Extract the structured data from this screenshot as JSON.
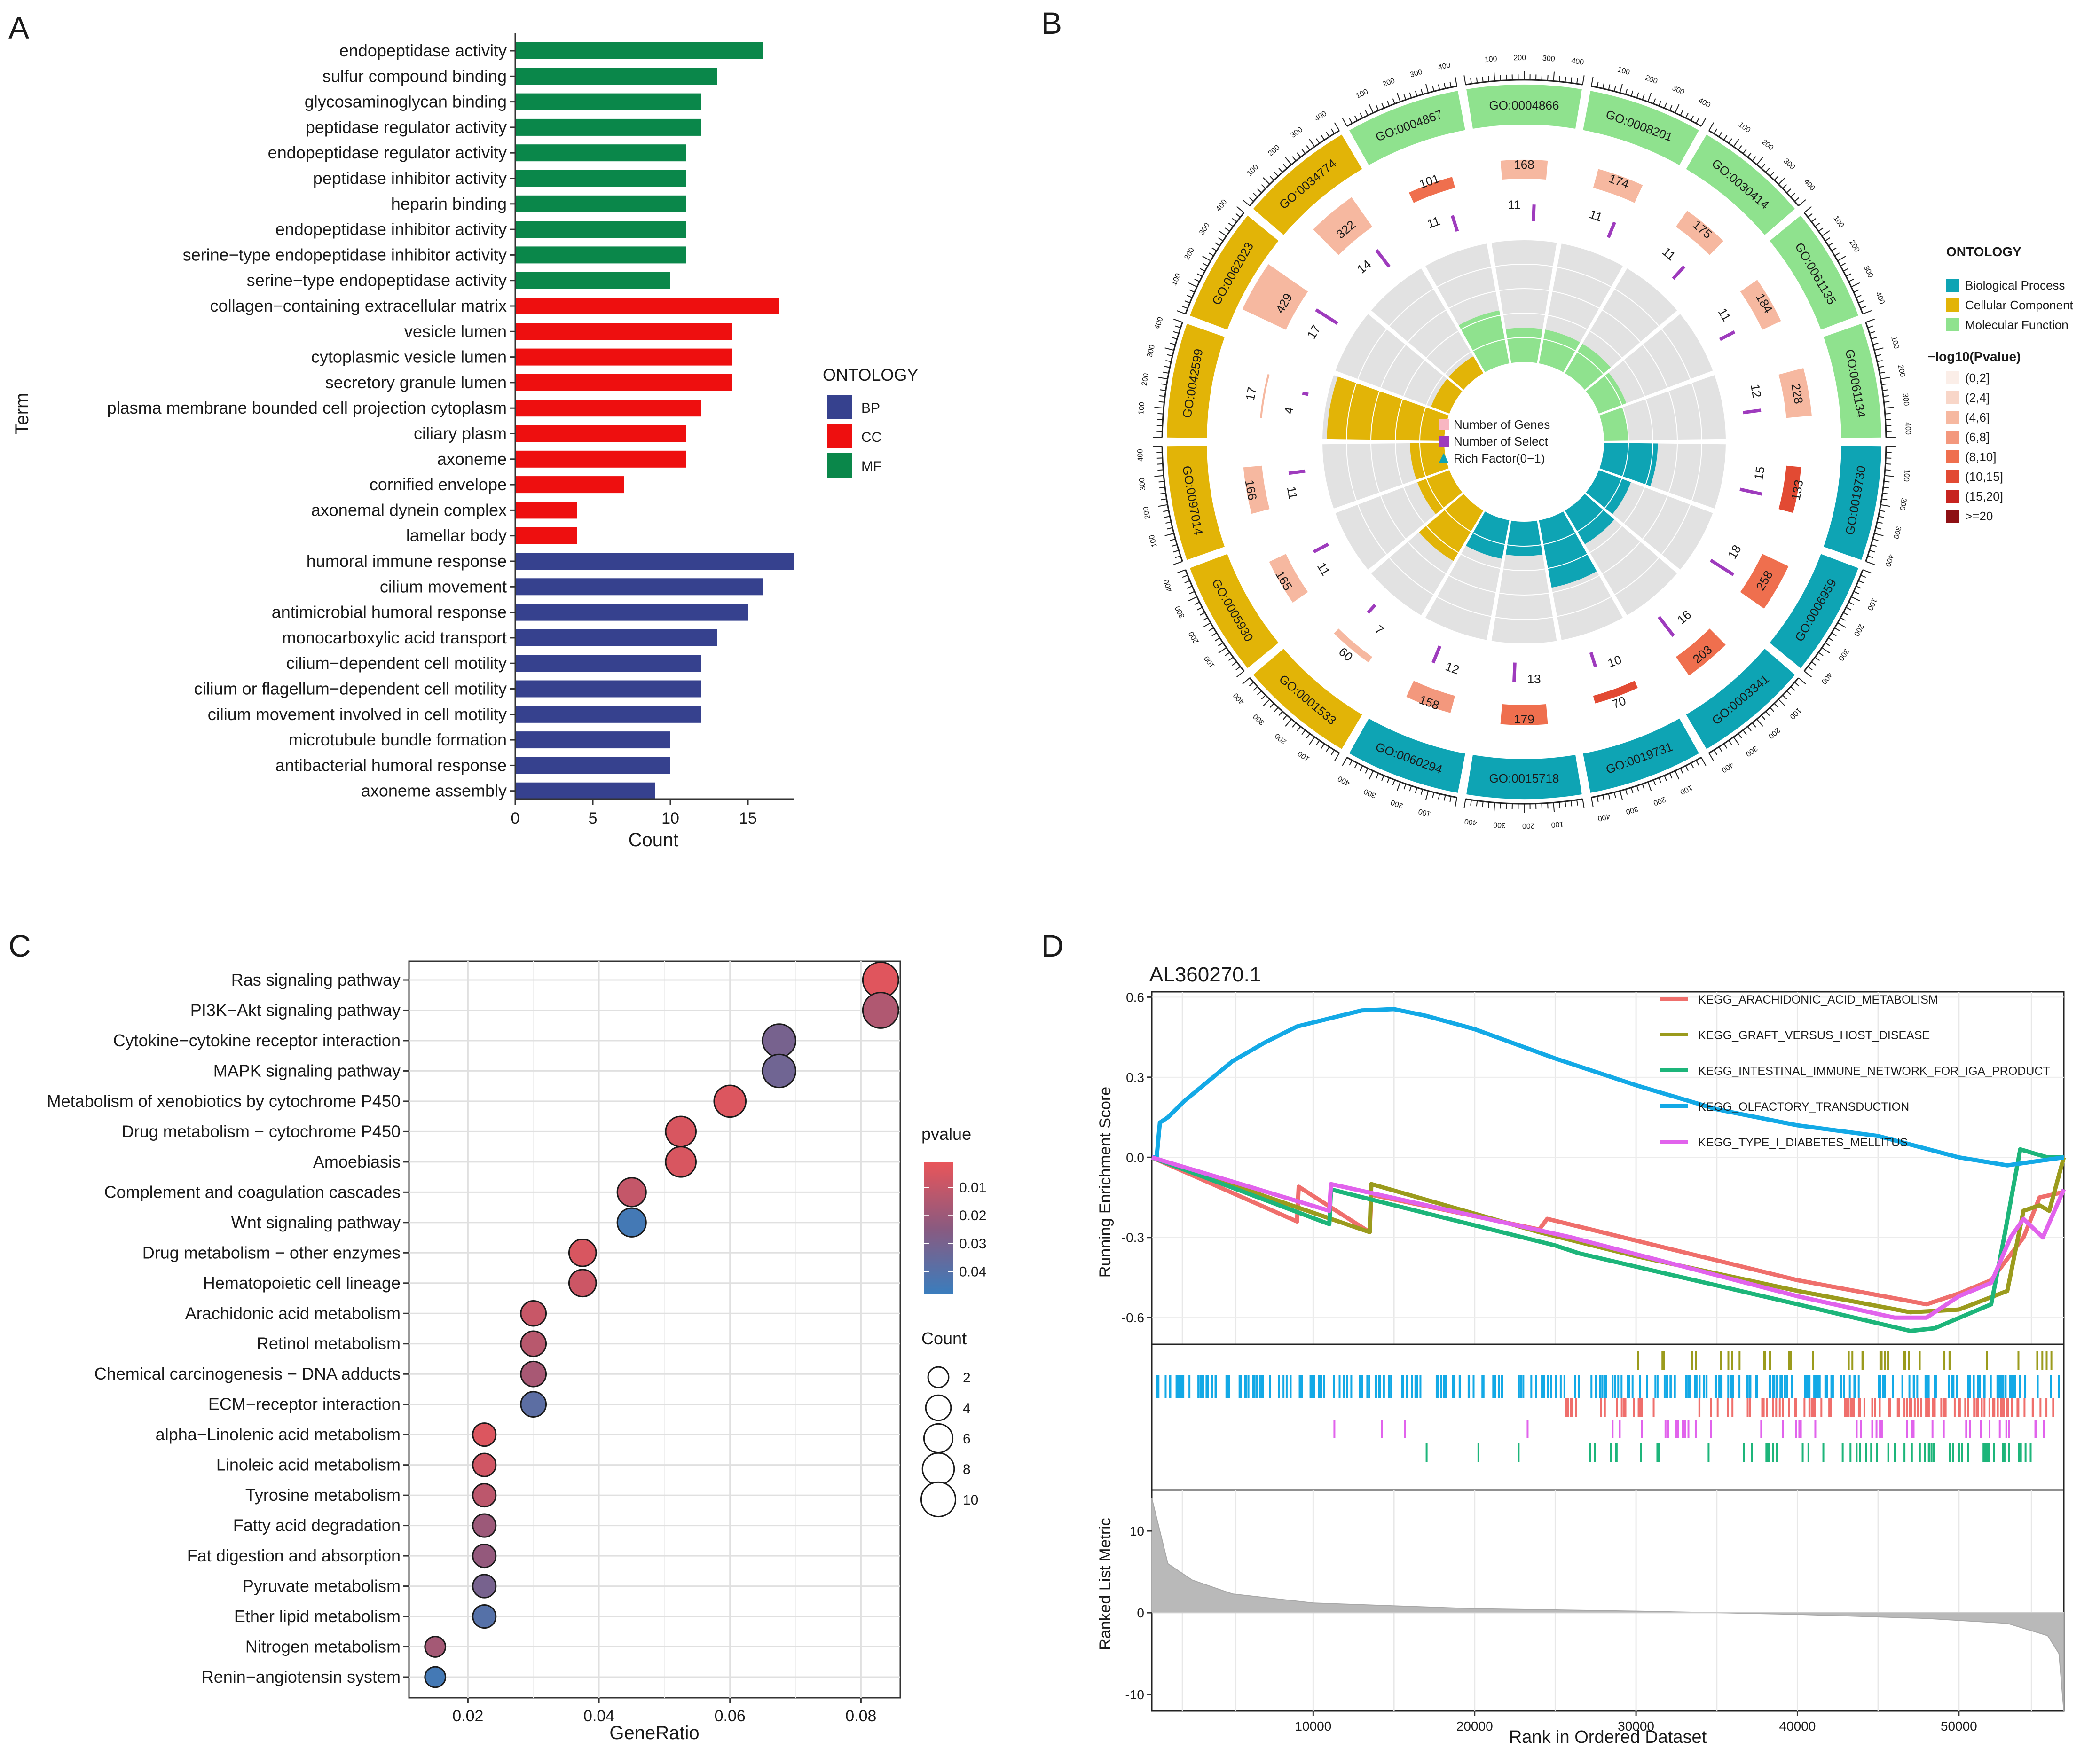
{
  "panels": {
    "a": "A",
    "b": "B",
    "c": "C",
    "d": "D"
  },
  "colors": {
    "BP": "#36418e",
    "CC": "#ee0f0f",
    "MF": "#0a874a",
    "gsea": [
      "#ef6f6c",
      "#9b9b1d",
      "#1db57a",
      "#13a9e6",
      "#e163ec"
    ],
    "circ_bp": "#0ea4b4",
    "circ_cc": "#e2b407",
    "circ_mf": "#8fe28e",
    "gray_wedge": "#e2e2e2",
    "select_bar": "#9e3bbd"
  },
  "chart_data": [
    {
      "panel": "A",
      "type": "bar",
      "orientation": "horizontal",
      "xlabel": "Count",
      "ylabel": "Term",
      "xlim": [
        0,
        18
      ],
      "xticks": [
        0,
        5,
        10,
        15
      ],
      "legend": {
        "title": "ONTOLOGY",
        "entries": [
          "BP",
          "CC",
          "MF"
        ],
        "placement": "right"
      },
      "categories": [
        "endopeptidase activity",
        "sulfur compound binding",
        "glycosaminoglycan binding",
        "peptidase regulator activity",
        "endopeptidase regulator activity",
        "peptidase inhibitor activity",
        "heparin binding",
        "endopeptidase inhibitor activity",
        "serine−type endopeptidase inhibitor activity",
        "serine−type endopeptidase activity",
        "collagen−containing extracellular matrix",
        "vesicle lumen",
        "cytoplasmic vesicle lumen",
        "secretory granule lumen",
        "plasma membrane bounded cell projection cytoplasm",
        "ciliary plasm",
        "axoneme",
        "cornified envelope",
        "axonemal dynein complex",
        "lamellar body",
        "humoral immune response",
        "cilium movement",
        "antimicrobial humoral response",
        "monocarboxylic acid transport",
        "cilium−dependent cell motility",
        "cilium or flagellum−dependent cell motility",
        "cilium movement involved in cell motility",
        "microtubule bundle formation",
        "antibacterial humoral response",
        "axoneme assembly"
      ],
      "values": [
        16,
        13,
        12,
        12,
        11,
        11,
        11,
        11,
        11,
        10,
        17,
        14,
        14,
        14,
        12,
        11,
        11,
        7,
        4,
        4,
        18,
        16,
        15,
        13,
        12,
        12,
        12,
        10,
        10,
        9
      ],
      "groups": [
        "MF",
        "MF",
        "MF",
        "MF",
        "MF",
        "MF",
        "MF",
        "MF",
        "MF",
        "MF",
        "CC",
        "CC",
        "CC",
        "CC",
        "CC",
        "CC",
        "CC",
        "CC",
        "CC",
        "CC",
        "BP",
        "BP",
        "BP",
        "BP",
        "BP",
        "BP",
        "BP",
        "BP",
        "BP",
        "BP"
      ]
    },
    {
      "panel": "B",
      "type": "circular",
      "legend_ontology": {
        "title": "ONTOLOGY",
        "entries": [
          "Biological Process",
          "Cellular Component",
          "Molecular Function"
        ]
      },
      "legend_pvalue": {
        "title": "−log10(Pvalue)",
        "entries": [
          "(0,2]",
          "(2,4]",
          "(4,6]",
          "(6,8]",
          "(8,10]",
          "(10,15]",
          "(15,20]",
          ">=20"
        ],
        "colors": [
          "#fbeee8",
          "#f8d6c8",
          "#f6b8a0",
          "#f3987d",
          "#ef6f4e",
          "#e24a33",
          "#c7241f",
          "#8e1014"
        ]
      },
      "center_legend": [
        "Number of Genes",
        "Number of Select",
        "Rich Factor(0−1)"
      ],
      "scale_ticks": [
        "100",
        "200",
        "300",
        "400"
      ],
      "terms": [
        {
          "id": "GO:0004866",
          "genes": 168,
          "select": 11,
          "rich": 0.07,
          "ont": "MF",
          "plog": 4
        },
        {
          "id": "GO:0008201",
          "genes": 174,
          "select": 11,
          "rich": 0.07,
          "ont": "MF",
          "plog": 4
        },
        {
          "id": "GO:0030414",
          "genes": 175,
          "select": 11,
          "rich": 0.07,
          "ont": "MF",
          "plog": 4
        },
        {
          "id": "GO:0061135",
          "genes": 184,
          "select": 11,
          "rich": 0.06,
          "ont": "MF",
          "plog": 4
        },
        {
          "id": "GO:0061134",
          "genes": 228,
          "select": 12,
          "rich": 0.05,
          "ont": "MF",
          "plog": 4
        },
        {
          "id": "GO:0019730",
          "genes": 133,
          "select": 15,
          "rich": 0.11,
          "ont": "BP",
          "plog": 14
        },
        {
          "id": "GO:0006959",
          "genes": 258,
          "select": 18,
          "rich": 0.07,
          "ont": "BP",
          "plog": 9
        },
        {
          "id": "GO:0003341",
          "genes": 203,
          "select": 16,
          "rich": 0.08,
          "ont": "BP",
          "plog": 9
        },
        {
          "id": "GO:0019731",
          "genes": 70,
          "select": 10,
          "rich": 0.14,
          "ont": "BP",
          "plog": 11
        },
        {
          "id": "GO:0015718",
          "genes": 179,
          "select": 13,
          "rich": 0.07,
          "ont": "BP",
          "plog": 9
        },
        {
          "id": "GO:0060294",
          "genes": 158,
          "select": 12,
          "rich": 0.08,
          "ont": "BP",
          "plog": 5
        },
        {
          "id": "GO:0001533",
          "genes": 60,
          "select": 7,
          "rich": 0.12,
          "ont": "CC",
          "plog": 4
        },
        {
          "id": "GO:0005930",
          "genes": 165,
          "select": 11,
          "rich": 0.07,
          "ont": "CC",
          "plog": 4
        },
        {
          "id": "GO:0097014",
          "genes": 166,
          "select": 11,
          "rich": 0.07,
          "ont": "CC",
          "plog": 4
        },
        {
          "id": "GO:0042599",
          "genes": 17,
          "select": 4,
          "rich": 0.24,
          "ont": "CC",
          "plog": 4
        },
        {
          "id": "GO:0062023",
          "genes": 429,
          "select": 17,
          "rich": 0.04,
          "ont": "CC",
          "plog": 4
        },
        {
          "id": "GO:0034774",
          "genes": 322,
          "select": 14,
          "rich": 0.04,
          "ont": "CC",
          "plog": 4
        },
        {
          "id": "GO:0004867",
          "genes": 101,
          "select": 11,
          "rich": 0.11,
          "ont": "MF",
          "plog": 9
        }
      ]
    },
    {
      "panel": "C",
      "type": "scatter",
      "xlabel": "GeneRatio",
      "xlim": [
        0.011,
        0.086
      ],
      "xticks": [
        0.02,
        0.04,
        0.06,
        0.08
      ],
      "categories": [
        "Ras signaling pathway",
        "PI3K−Akt signaling pathway",
        "Cytokine−cytokine receptor interaction",
        "MAPK signaling pathway",
        "Metabolism of xenobiotics by cytochrome P450",
        "Drug metabolism − cytochrome P450",
        "Amoebiasis",
        "Complement and coagulation cascades",
        "Wnt signaling pathway",
        "Drug metabolism − other enzymes",
        "Hematopoietic cell lineage",
        "Arachidonic acid metabolism",
        "Retinol metabolism",
        "Chemical carcinogenesis − DNA adducts",
        "ECM−receptor interaction",
        "alpha−Linolenic acid metabolism",
        "Linoleic acid metabolism",
        "Tyrosine metabolism",
        "Fatty acid degradation",
        "Fat digestion and absorption",
        "Pyruvate metabolism",
        "Ether lipid metabolism",
        "Nitrogen metabolism",
        "Renin−angiotensin system"
      ],
      "gene_ratio": [
        0.083,
        0.083,
        0.0675,
        0.0675,
        0.06,
        0.0525,
        0.0525,
        0.045,
        0.045,
        0.0375,
        0.0375,
        0.03,
        0.03,
        0.03,
        0.03,
        0.0225,
        0.0225,
        0.0225,
        0.0225,
        0.0225,
        0.0225,
        0.0225,
        0.015,
        0.015
      ],
      "count": [
        11,
        11,
        9,
        9,
        8,
        7,
        7,
        6,
        6,
        5,
        5,
        4,
        4,
        4,
        4,
        3,
        3,
        3,
        3,
        3,
        3,
        3,
        2,
        2
      ],
      "pvalue": [
        0.003,
        0.015,
        0.03,
        0.032,
        0.004,
        0.005,
        0.005,
        0.01,
        0.045,
        0.005,
        0.008,
        0.009,
        0.013,
        0.017,
        0.038,
        0.004,
        0.007,
        0.012,
        0.02,
        0.022,
        0.03,
        0.04,
        0.018,
        0.045
      ],
      "legend_pvalue": {
        "title": "pvalue",
        "ticks": [
          "0.01",
          "0.02",
          "0.03",
          "0.04"
        ],
        "range": [
          0.001,
          0.048
        ]
      },
      "legend_count": {
        "title": "Count",
        "values": [
          2,
          4,
          6,
          8,
          10
        ]
      }
    },
    {
      "panel": "D",
      "type": "line",
      "title": "AL360270.1",
      "ylabel_top": "Running Enrichment Score",
      "ylabel_bottom": "Ranked List Metric",
      "xlabel": "Rank in Ordered Dataset",
      "xlim": [
        0,
        56500
      ],
      "xticks": [
        10000,
        20000,
        30000,
        40000,
        50000
      ],
      "es_ylim": [
        -0.7,
        0.62
      ],
      "es_yticks": [
        "0.6",
        "0.3",
        "0.0",
        "-0.3",
        "-0.6"
      ],
      "metric_ylim": [
        -12,
        15
      ],
      "metric_yticks": [
        "10",
        "0",
        "-10"
      ],
      "series": [
        {
          "name": "KEGG_ARACHIDONIC_ACID_METABOLISM",
          "points": [
            [
              0,
              0
            ],
            [
              9000,
              -0.24
            ],
            [
              9100,
              -0.11
            ],
            [
              13500,
              -0.28
            ],
            [
              13600,
              -0.14
            ],
            [
              24000,
              -0.27
            ],
            [
              24500,
              -0.23
            ],
            [
              40000,
              -0.46
            ],
            [
              48000,
              -0.55
            ],
            [
              50000,
              -0.51
            ],
            [
              52000,
              -0.46
            ],
            [
              54000,
              -0.3
            ],
            [
              55000,
              -0.15
            ],
            [
              56500,
              -0.13
            ]
          ]
        },
        {
          "name": "KEGG_GRAFT_VERSUS_HOST_DISEASE",
          "points": [
            [
              0,
              0
            ],
            [
              13500,
              -0.28
            ],
            [
              13600,
              -0.1
            ],
            [
              24000,
              -0.28
            ],
            [
              30000,
              -0.37
            ],
            [
              40000,
              -0.5
            ],
            [
              47000,
              -0.58
            ],
            [
              50000,
              -0.57
            ],
            [
              53000,
              -0.5
            ],
            [
              54000,
              -0.2
            ],
            [
              55000,
              -0.18
            ],
            [
              55600,
              -0.2
            ],
            [
              56500,
              0
            ]
          ]
        },
        {
          "name": "KEGG_INTESTINAL_IMMUNE_NETWORK_FOR_IGA_PRODUCT",
          "points": [
            [
              0,
              0
            ],
            [
              11000,
              -0.25
            ],
            [
              11100,
              -0.12
            ],
            [
              25000,
              -0.33
            ],
            [
              26500,
              -0.36
            ],
            [
              40000,
              -0.55
            ],
            [
              47000,
              -0.65
            ],
            [
              48500,
              -0.64
            ],
            [
              52000,
              -0.55
            ],
            [
              52800,
              -0.3
            ],
            [
              53800,
              0.03
            ],
            [
              55500,
              0.0
            ],
            [
              56500,
              0.0
            ]
          ]
        },
        {
          "name": "KEGG_OLFACTORY_TRANSDUCTION",
          "points": [
            [
              0,
              0
            ],
            [
              300,
              0.0
            ],
            [
              500,
              0.13
            ],
            [
              1000,
              0.15
            ],
            [
              2000,
              0.21
            ],
            [
              3000,
              0.26
            ],
            [
              5000,
              0.36
            ],
            [
              7000,
              0.43
            ],
            [
              9000,
              0.49
            ],
            [
              11000,
              0.52
            ],
            [
              13000,
              0.55
            ],
            [
              15000,
              0.555
            ],
            [
              17000,
              0.53
            ],
            [
              20000,
              0.48
            ],
            [
              25000,
              0.37
            ],
            [
              30000,
              0.27
            ],
            [
              35000,
              0.18
            ],
            [
              40000,
              0.12
            ],
            [
              45000,
              0.08
            ],
            [
              50000,
              0.0
            ],
            [
              53000,
              -0.03
            ],
            [
              56500,
              0.0
            ]
          ]
        },
        {
          "name": "KEGG_TYPE_I_DIABETES_MELLITUS",
          "points": [
            [
              0,
              0
            ],
            [
              11000,
              -0.2
            ],
            [
              11100,
              -0.1
            ],
            [
              26000,
              -0.3
            ],
            [
              40000,
              -0.52
            ],
            [
              46000,
              -0.6
            ],
            [
              48000,
              -0.6
            ],
            [
              50000,
              -0.52
            ],
            [
              52000,
              -0.47
            ],
            [
              53200,
              -0.3
            ],
            [
              54000,
              -0.23
            ],
            [
              55200,
              -0.3
            ],
            [
              56500,
              -0.12
            ]
          ]
        }
      ],
      "metric_curve": [
        [
          0,
          14
        ],
        [
          1000,
          6
        ],
        [
          2500,
          4
        ],
        [
          5000,
          2.3
        ],
        [
          10000,
          1.2
        ],
        [
          20000,
          0.5
        ],
        [
          30000,
          0.2
        ],
        [
          40000,
          -0.2
        ],
        [
          48000,
          -0.7
        ],
        [
          53000,
          -1.3
        ],
        [
          55500,
          -2.8
        ],
        [
          56200,
          -5
        ],
        [
          56500,
          -12
        ]
      ]
    }
  ]
}
